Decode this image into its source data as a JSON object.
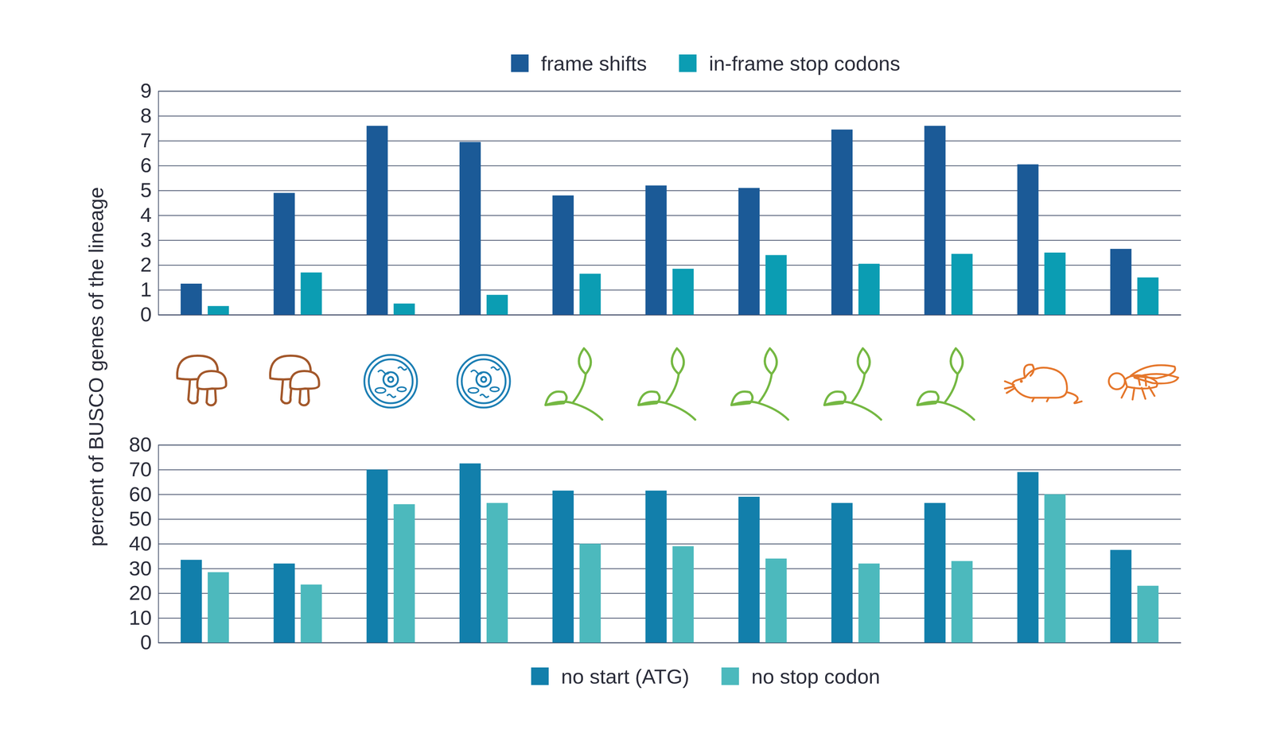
{
  "chart_data": [
    {
      "type": "bar",
      "ylabel": "percent of BUSCO genes of the lineage",
      "categories": [
        null,
        null,
        null,
        null,
        null,
        null,
        null,
        null,
        null,
        null,
        null
      ],
      "series": [
        {
          "name": "frame shifts",
          "color": "#1b5a97",
          "values": [
            1.25,
            4.9,
            7.6,
            6.95,
            4.8,
            5.2,
            5.1,
            7.45,
            7.6,
            6.05,
            2.65
          ]
        },
        {
          "name": "in-frame stop codons",
          "color": "#0b9db3",
          "values": [
            0.35,
            1.7,
            0.45,
            0.8,
            1.65,
            1.85,
            2.4,
            2.05,
            2.45,
            2.5,
            1.5
          ]
        }
      ],
      "ylim": [
        0,
        9
      ],
      "yticks": [
        0,
        1,
        2,
        3,
        4,
        5,
        6,
        7,
        8,
        9
      ],
      "grid": true,
      "legend": "top"
    },
    {
      "type": "bar",
      "categories": [
        null,
        null,
        null,
        null,
        null,
        null,
        null,
        null,
        null,
        null,
        null
      ],
      "series": [
        {
          "name": "no start (ATG)",
          "color": "#127fab",
          "values": [
            33.5,
            32,
            70,
            72.5,
            61.5,
            61.5,
            59,
            56.5,
            56.5,
            69,
            37.5
          ]
        },
        {
          "name": "no stop codon",
          "color": "#4cb9bd",
          "values": [
            28.5,
            23.5,
            56,
            56.5,
            40,
            39,
            34,
            32,
            33,
            60,
            23
          ]
        }
      ],
      "ylim": [
        0,
        80
      ],
      "yticks": [
        0,
        10,
        20,
        30,
        40,
        50,
        60,
        70,
        80
      ],
      "grid": true,
      "legend": "bottom"
    }
  ]
}
